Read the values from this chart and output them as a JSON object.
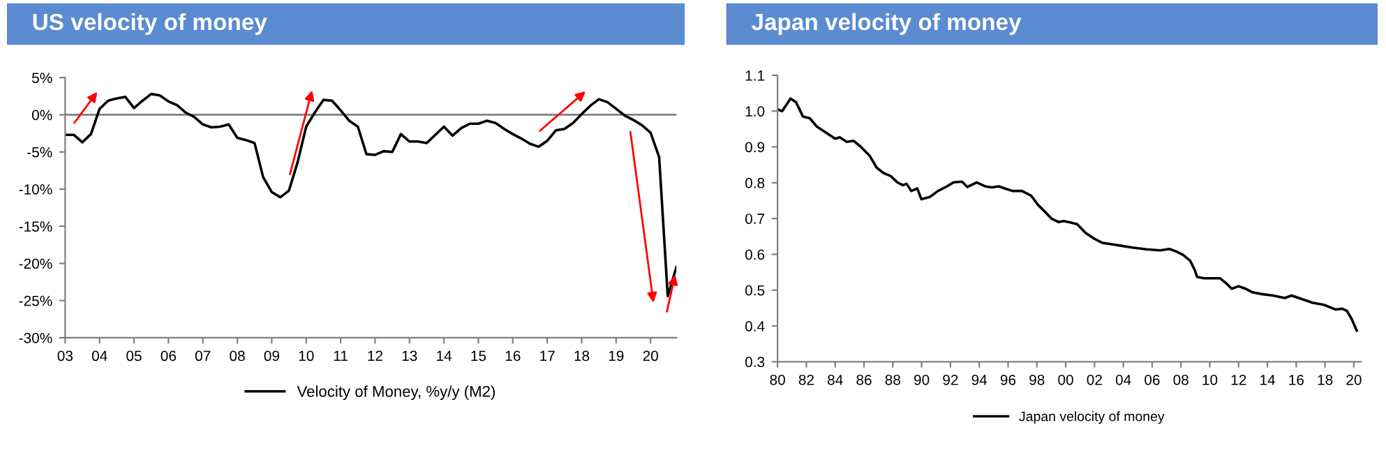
{
  "chart_data": [
    {
      "type": "line",
      "title": "US velocity of money",
      "legend": "bottom",
      "grid": false,
      "series": [
        {
          "name": "Velocity of Money, %y/y (M2)",
          "color": "#000000",
          "x": [
            2003,
            2003.25,
            2003.5,
            2003.75,
            2004,
            2004.25,
            2004.5,
            2004.75,
            2005,
            2005.25,
            2005.5,
            2005.75,
            2006,
            2006.25,
            2006.5,
            2006.75,
            2007,
            2007.25,
            2007.5,
            2007.75,
            2008,
            2008.25,
            2008.5,
            2008.75,
            2009,
            2009.25,
            2009.5,
            2009.75,
            2010,
            2010.25,
            2010.5,
            2010.75,
            2011,
            2011.25,
            2011.5,
            2011.75,
            2012,
            2012.25,
            2012.5,
            2012.75,
            2013,
            2013.25,
            2013.5,
            2013.75,
            2014,
            2014.25,
            2014.5,
            2014.75,
            2015,
            2015.25,
            2015.5,
            2015.75,
            2016,
            2016.25,
            2016.5,
            2016.75,
            2017,
            2017.25,
            2017.5,
            2017.75,
            2018,
            2018.25,
            2018.5,
            2018.75,
            2019,
            2019.25,
            2019.5,
            2019.75,
            2020,
            2020.25,
            2020.5,
            2020.75
          ],
          "values": [
            -2.7,
            -2.7,
            -3.7,
            -2.6,
            0.8,
            1.9,
            2.2,
            2.4,
            0.9,
            1.9,
            2.8,
            2.6,
            1.8,
            1.3,
            0.3,
            -0.3,
            -1.3,
            -1.7,
            -1.6,
            -1.3,
            -3.1,
            -3.4,
            -3.8,
            -8.4,
            -10.4,
            -11.1,
            -10.2,
            -6.4,
            -1.6,
            0.3,
            2.0,
            1.9,
            0.6,
            -0.8,
            -1.6,
            -5.3,
            -5.4,
            -4.9,
            -5.0,
            -2.6,
            -3.6,
            -3.6,
            -3.8,
            -2.7,
            -1.6,
            -2.8,
            -1.8,
            -1.2,
            -1.2,
            -0.8,
            -1.1,
            -1.9,
            -2.6,
            -3.2,
            -3.9,
            -4.3,
            -3.5,
            -2.1,
            -1.9,
            -1.1,
            0.1,
            1.2,
            2.1,
            1.7,
            0.8,
            -0.1,
            -0.7,
            -1.4,
            -2.4,
            -5.7,
            -24.4,
            -20.5
          ]
        }
      ],
      "xlim": [
        2003,
        2020.75
      ],
      "xticks": [
        {
          "value": 2003,
          "label": "03"
        },
        {
          "value": 2004,
          "label": "04"
        },
        {
          "value": 2005,
          "label": "05"
        },
        {
          "value": 2006,
          "label": "06"
        },
        {
          "value": 2007,
          "label": "07"
        },
        {
          "value": 2008,
          "label": "08"
        },
        {
          "value": 2009,
          "label": "09"
        },
        {
          "value": 2010,
          "label": "10"
        },
        {
          "value": 2011,
          "label": "11"
        },
        {
          "value": 2012,
          "label": "12"
        },
        {
          "value": 2013,
          "label": "13"
        },
        {
          "value": 2014,
          "label": "14"
        },
        {
          "value": 2015,
          "label": "15"
        },
        {
          "value": 2016,
          "label": "16"
        },
        {
          "value": 2017,
          "label": "17"
        },
        {
          "value": 2018,
          "label": "18"
        },
        {
          "value": 2019,
          "label": "19"
        },
        {
          "value": 2020,
          "label": "20"
        }
      ],
      "ylim": [
        -30,
        5
      ],
      "yticks": [
        {
          "value": -30,
          "label": "-30%"
        },
        {
          "value": -25,
          "label": "-25%"
        },
        {
          "value": -20,
          "label": "-20%"
        },
        {
          "value": -15,
          "label": "-15%"
        },
        {
          "value": -10,
          "label": "-10%"
        },
        {
          "value": -5,
          "label": "-5%"
        },
        {
          "value": 0,
          "label": "0%"
        },
        {
          "value": 5,
          "label": "5%"
        }
      ],
      "ref_lines": [
        {
          "axis": "y",
          "value": 0,
          "color": "#808080"
        }
      ]
    },
    {
      "type": "line",
      "title": "Japan velocity of money",
      "legend": "bottom",
      "grid": false,
      "series": [
        {
          "name": "Japan velocity of money",
          "color": "#000000",
          "x": [
            1980.0,
            1980.32,
            1980.9,
            1981.28,
            1981.76,
            1982.24,
            1982.72,
            1983.36,
            1984.0,
            1984.32,
            1984.8,
            1985.28,
            1985.76,
            1986.4,
            1986.88,
            1987.36,
            1987.84,
            1988.32,
            1988.7,
            1988.96,
            1989.28,
            1989.7,
            1989.98,
            1990.56,
            1991.14,
            1991.68,
            1992.22,
            1992.8,
            1993.18,
            1993.82,
            1994.4,
            1994.88,
            1995.36,
            1995.84,
            1996.32,
            1996.96,
            1997.6,
            1998.08,
            1998.56,
            1999.04,
            1999.52,
            1999.84,
            2000.32,
            2000.8,
            2001.38,
            2001.92,
            2002.56,
            2003.2,
            2003.84,
            2004.64,
            2005.6,
            2006.56,
            2007.2,
            2007.68,
            2008.16,
            2008.64,
            2008.96,
            2009.12,
            2009.6,
            2010.24,
            2010.72,
            2011.2,
            2011.52,
            2012.0,
            2012.48,
            2012.96,
            2013.6,
            2014.4,
            2015.2,
            2015.68,
            2016.32,
            2017.12,
            2017.92,
            2018.72,
            2019.2,
            2019.52,
            2019.84,
            2020.2
          ],
          "values": [
            1.005,
            1.0,
            1.035,
            1.025,
            0.985,
            0.98,
            0.957,
            0.94,
            0.923,
            0.927,
            0.914,
            0.917,
            0.901,
            0.875,
            0.842,
            0.827,
            0.819,
            0.801,
            0.793,
            0.797,
            0.777,
            0.784,
            0.754,
            0.76,
            0.777,
            0.788,
            0.801,
            0.803,
            0.788,
            0.801,
            0.79,
            0.787,
            0.79,
            0.783,
            0.777,
            0.777,
            0.764,
            0.738,
            0.719,
            0.699,
            0.69,
            0.693,
            0.689,
            0.684,
            0.66,
            0.645,
            0.632,
            0.628,
            0.624,
            0.619,
            0.614,
            0.611,
            0.615,
            0.608,
            0.598,
            0.582,
            0.556,
            0.537,
            0.533,
            0.533,
            0.533,
            0.517,
            0.504,
            0.511,
            0.504,
            0.494,
            0.489,
            0.485,
            0.478,
            0.485,
            0.476,
            0.465,
            0.459,
            0.446,
            0.448,
            0.442,
            0.42,
            0.387
          ]
        }
      ],
      "xlim": [
        1980,
        2020.5
      ],
      "xticks": [
        {
          "value": 1980,
          "label": "80"
        },
        {
          "value": 1982,
          "label": "82"
        },
        {
          "value": 1984,
          "label": "84"
        },
        {
          "value": 1986,
          "label": "86"
        },
        {
          "value": 1988,
          "label": "88"
        },
        {
          "value": 1990,
          "label": "90"
        },
        {
          "value": 1992,
          "label": "92"
        },
        {
          "value": 1994,
          "label": "94"
        },
        {
          "value": 1996,
          "label": "96"
        },
        {
          "value": 1998,
          "label": "98"
        },
        {
          "value": 2000,
          "label": "00"
        },
        {
          "value": 2002,
          "label": "02"
        },
        {
          "value": 2004,
          "label": "04"
        },
        {
          "value": 2006,
          "label": "06"
        },
        {
          "value": 2008,
          "label": "08"
        },
        {
          "value": 2010,
          "label": "10"
        },
        {
          "value": 2012,
          "label": "12"
        },
        {
          "value": 2014,
          "label": "14"
        },
        {
          "value": 2016,
          "label": "16"
        },
        {
          "value": 2018,
          "label": "18"
        },
        {
          "value": 2020,
          "label": "20"
        }
      ],
      "ylim": [
        0.3,
        1.1
      ],
      "yticks": [
        {
          "value": 0.3,
          "label": "0.3"
        },
        {
          "value": 0.4,
          "label": "0.4"
        },
        {
          "value": 0.5,
          "label": "0.5"
        },
        {
          "value": 0.6,
          "label": "0.6"
        },
        {
          "value": 0.7,
          "label": "0.7"
        },
        {
          "value": 0.8,
          "label": "0.8"
        },
        {
          "value": 0.9,
          "label": "0.9"
        },
        {
          "value": 1.0,
          "label": "1.0"
        },
        {
          "value": 1.1,
          "label": "1.1"
        }
      ]
    }
  ]
}
